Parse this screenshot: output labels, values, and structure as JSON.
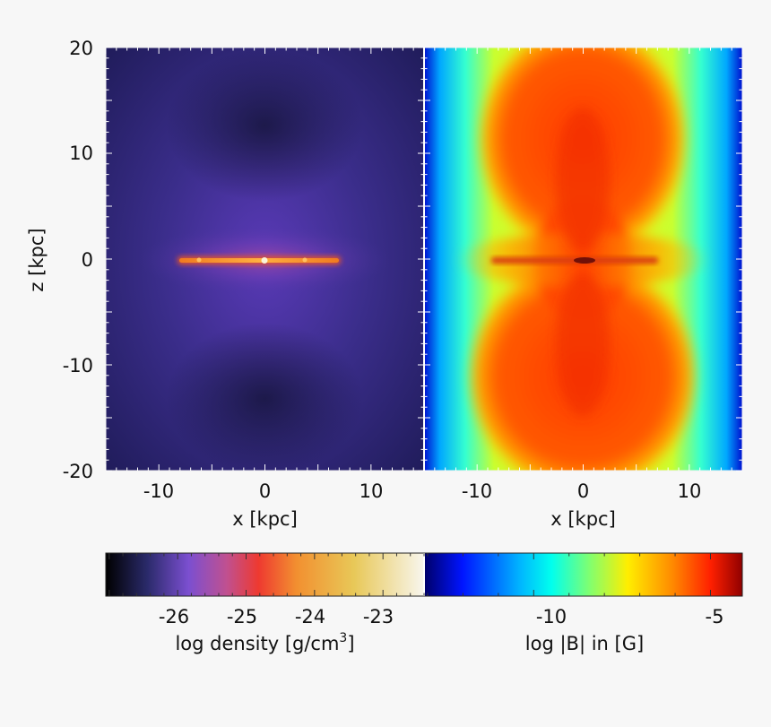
{
  "chart_data": [
    {
      "type": "heatmap",
      "panel": "left",
      "quantity": "log density",
      "xlabel": "x [kpc]",
      "ylabel": "z [kpc]",
      "xlim": [
        -15,
        15
      ],
      "ylim": [
        -20,
        20
      ],
      "xticks": [
        -10,
        0,
        10
      ],
      "yticks": [
        20,
        10,
        0,
        -10,
        -20
      ],
      "tick_labels_x": [
        "-10",
        "0",
        "10"
      ],
      "tick_labels_y": [
        "20",
        "10",
        "0",
        "-10",
        "-20"
      ],
      "colormap": [
        "#000000",
        "#3b2f8f",
        "#7b4fd0",
        "#e8403a",
        "#f08a2a",
        "#e8c24a",
        "#f6f1e6"
      ],
      "colorbar": {
        "label": "log density [g/cm",
        "label_sup": "3",
        "label_end": "]",
        "range": [
          -27.05,
          -22.4
        ],
        "ticks": [
          -26,
          -25,
          -24,
          -23
        ],
        "tick_labels": [
          "-26",
          "-25",
          "-24",
          "-23"
        ]
      }
    },
    {
      "type": "heatmap",
      "panel": "right",
      "quantity": "log |B| in [G]",
      "xlabel": "x [kpc]",
      "xlim": [
        -15,
        15
      ],
      "ylim": [
        -20,
        20
      ],
      "xticks": [
        -10,
        0,
        10
      ],
      "tick_labels_x": [
        "-10",
        "0",
        "10"
      ],
      "colormap": [
        "#000070",
        "#0014ff",
        "#00aaff",
        "#00ffee",
        "#7fff70",
        "#ffee00",
        "#ff9a00",
        "#ff3000",
        "#a00000"
      ],
      "colorbar": {
        "label": "log |B| in [G]",
        "range": [
          -13.1,
          -4.1
        ],
        "ticks": [
          -10,
          -5
        ],
        "tick_labels": [
          "-10",
          "-5"
        ]
      }
    }
  ]
}
